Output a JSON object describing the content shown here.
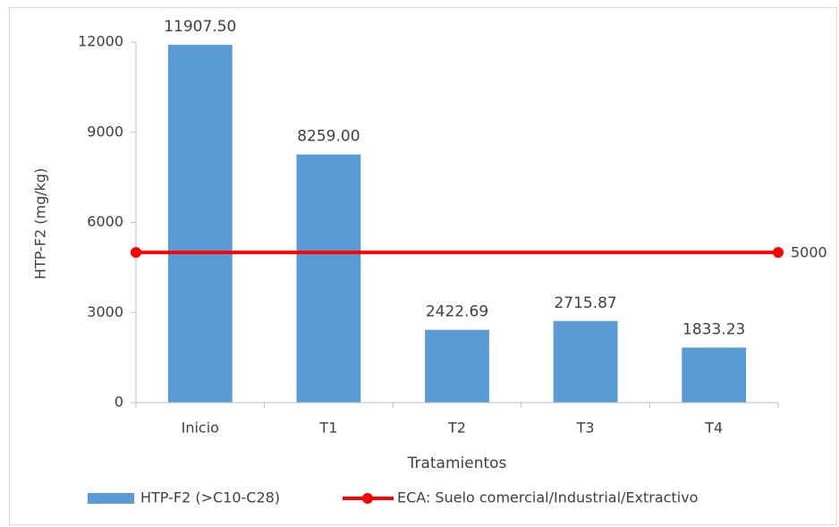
{
  "chart_data": {
    "type": "bar",
    "categories": [
      "Inicio",
      "T1",
      "T2",
      "T3",
      "T4"
    ],
    "series": [
      {
        "name": "HTP-F2 (>C10-C28)",
        "color": "#5b9bd5",
        "values": [
          11907.5,
          8259,
          2422.69,
          2715.87,
          1833.23
        ],
        "value_labels": [
          "11907.50",
          "8259.00",
          "2422.69",
          "2715.87",
          "1833.23"
        ]
      }
    ],
    "reference_line": {
      "name": "ECA: Suelo comercial/Industrial/Extractivo",
      "color": "#ff0000",
      "value": 5000
    },
    "ylabel": "HTP-F2 (mg/kg)",
    "xlabel": "Tratamientos",
    "ylim": [
      0,
      12000
    ],
    "yticks": [
      0,
      3000,
      6000,
      9000,
      12000
    ],
    "legend": "bottom"
  }
}
